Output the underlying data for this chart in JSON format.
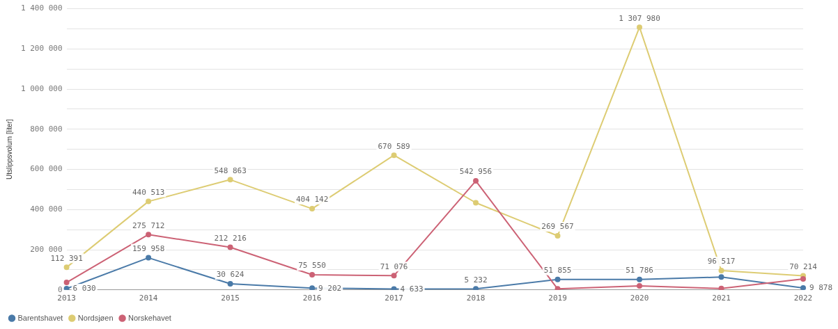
{
  "chart_data": {
    "type": "line",
    "ylabel": "Utslippsvolum [liter]",
    "categories": [
      "2013",
      "2014",
      "2015",
      "2016",
      "2017",
      "2018",
      "2019",
      "2020",
      "2021",
      "2022"
    ],
    "series": [
      {
        "name": "Barentshavet",
        "color": "#4a7aa8",
        "values": [
          6030,
          159958,
          30624,
          9202,
          4633,
          5232,
          51855,
          51786,
          64000,
          9878
        ],
        "value_labels": [
          "6 030",
          "159 958",
          "30 624",
          "9 202",
          "4 633",
          "5 232",
          "51 855",
          "51 786",
          null,
          "9 878"
        ]
      },
      {
        "name": "Nordsjøen",
        "color": "#ddcc73",
        "values": [
          112391,
          440513,
          548863,
          404142,
          670589,
          434000,
          269567,
          1307980,
          96517,
          70214
        ],
        "value_labels": [
          "112 391",
          "440 513",
          "548 863",
          "404 142",
          "670 589",
          null,
          "269 567",
          "1 307 980",
          "96 517",
          "70 214"
        ]
      },
      {
        "name": "Norskehavet",
        "color": "#cc6275",
        "values": [
          37000,
          275712,
          212216,
          75550,
          71076,
          542956,
          5000,
          20000,
          7000,
          55000
        ],
        "value_labels": [
          null,
          "275 712",
          "212 216",
          "75 550",
          "71 076",
          "542 956",
          null,
          null,
          null,
          null
        ]
      }
    ],
    "ylim": [
      0,
      1400000
    ],
    "yticks": [
      {
        "value": 0,
        "label": "0"
      },
      {
        "value": 100000,
        "label": null
      },
      {
        "value": 200000,
        "label": "200 000"
      },
      {
        "value": 300000,
        "label": null
      },
      {
        "value": 400000,
        "label": "400 000"
      },
      {
        "value": 500000,
        "label": null
      },
      {
        "value": 600000,
        "label": "600 000"
      },
      {
        "value": 700000,
        "label": null
      },
      {
        "value": 800000,
        "label": "800 000"
      },
      {
        "value": 900000,
        "label": null
      },
      {
        "value": 1000000,
        "label": "1 000 000"
      },
      {
        "value": 1100000,
        "label": null
      },
      {
        "value": 1200000,
        "label": "1 200 000"
      },
      {
        "value": 1300000,
        "label": null
      },
      {
        "value": 1400000,
        "label": "1 400 000"
      }
    ],
    "grid": "y",
    "legend": "bottom left",
    "marker": "circle",
    "line_style": "solid"
  }
}
